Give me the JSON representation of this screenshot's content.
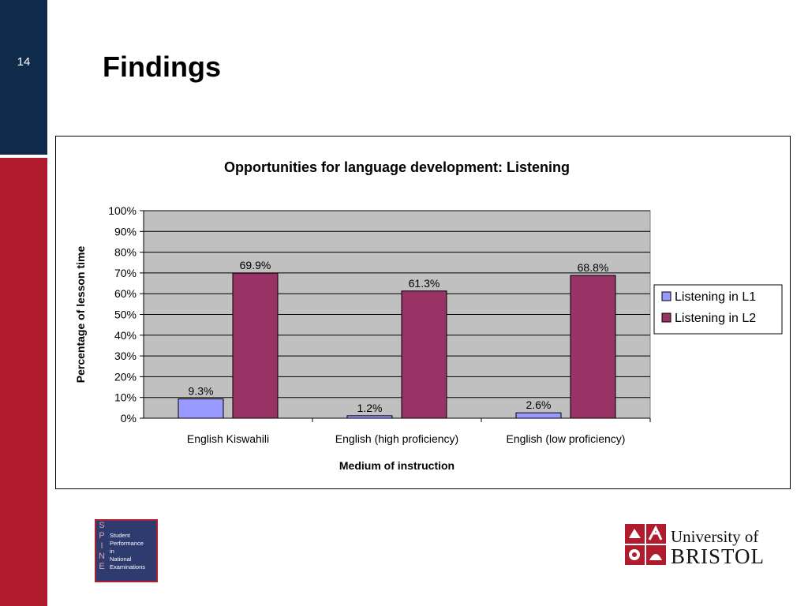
{
  "slide": {
    "number": "14",
    "title": "Findings"
  },
  "colors": {
    "sidebar_top": "#0f2a4a",
    "sidebar_bottom": "#b01c2e",
    "plot_bg": "#c0c0c0",
    "series_l1": "#9999ff",
    "series_l2": "#993366"
  },
  "chart_data": {
    "type": "bar",
    "title": "Opportunities for language development: Listening",
    "xlabel": "Medium of instruction",
    "ylabel": "Percentage of lesson time",
    "ylim": [
      0,
      100
    ],
    "yticks": [
      "0%",
      "10%",
      "20%",
      "30%",
      "40%",
      "50%",
      "60%",
      "70%",
      "80%",
      "90%",
      "100%"
    ],
    "grid": true,
    "legend_position": "right",
    "categories": [
      "English Kiswahili",
      "English (high proficiency)",
      "English (low proficiency)"
    ],
    "series": [
      {
        "name": "Listening in L1",
        "values": [
          9.3,
          1.2,
          2.6
        ],
        "labels": [
          "9.3%",
          "1.2%",
          "2.6%"
        ],
        "color": "#9999ff"
      },
      {
        "name": "Listening in L2",
        "values": [
          69.9,
          61.3,
          68.8
        ],
        "labels": [
          "69.9%",
          "61.3%",
          "68.8%"
        ],
        "color": "#993366"
      }
    ]
  },
  "logos": {
    "spine": {
      "letters": [
        "S",
        "P",
        "I",
        "N",
        "E"
      ],
      "lines": [
        "Student",
        "Performance",
        "in",
        "National",
        "Examinations"
      ]
    },
    "bristol": {
      "line1": "University of",
      "line2": "BRISTOL"
    }
  }
}
